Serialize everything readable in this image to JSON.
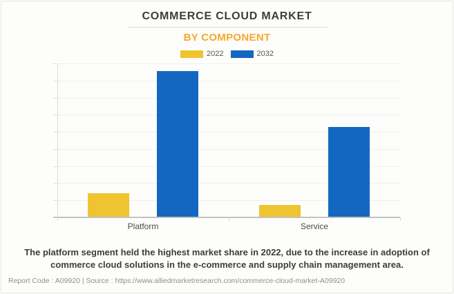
{
  "chart_data": {
    "type": "bar",
    "title": "COMMERCE CLOUD MARKET",
    "subtitle": "BY COMPONENT",
    "categories": [
      "Platform",
      "Service"
    ],
    "series": [
      {
        "name": "2022",
        "color": "#f0c330",
        "values_fraction_of_axis": [
          0.152,
          0.074
        ],
        "values_gridline_units": [
          1.4,
          0.7
        ]
      },
      {
        "name": "2032",
        "color": "#1467c0",
        "values_fraction_of_axis": [
          0.946,
          0.583
        ],
        "values_gridline_units": [
          8.5,
          5.2
        ]
      }
    ],
    "xlabel": "",
    "ylabel": "",
    "y_axis_tick_labels": "none (unlabeled axis, 9 gridline intervals)",
    "grid": true,
    "legend_position": "top-center"
  },
  "description": "The platform segment held the highest market share in 2022, due to the increase in adoption of commerce cloud solutions in the e-commerce and supply chain management area.",
  "footer": {
    "text": "Report Code : A09920  |  Source : https://www.alliedmarketresearch.com/commerce-cloud-market-A09920"
  }
}
